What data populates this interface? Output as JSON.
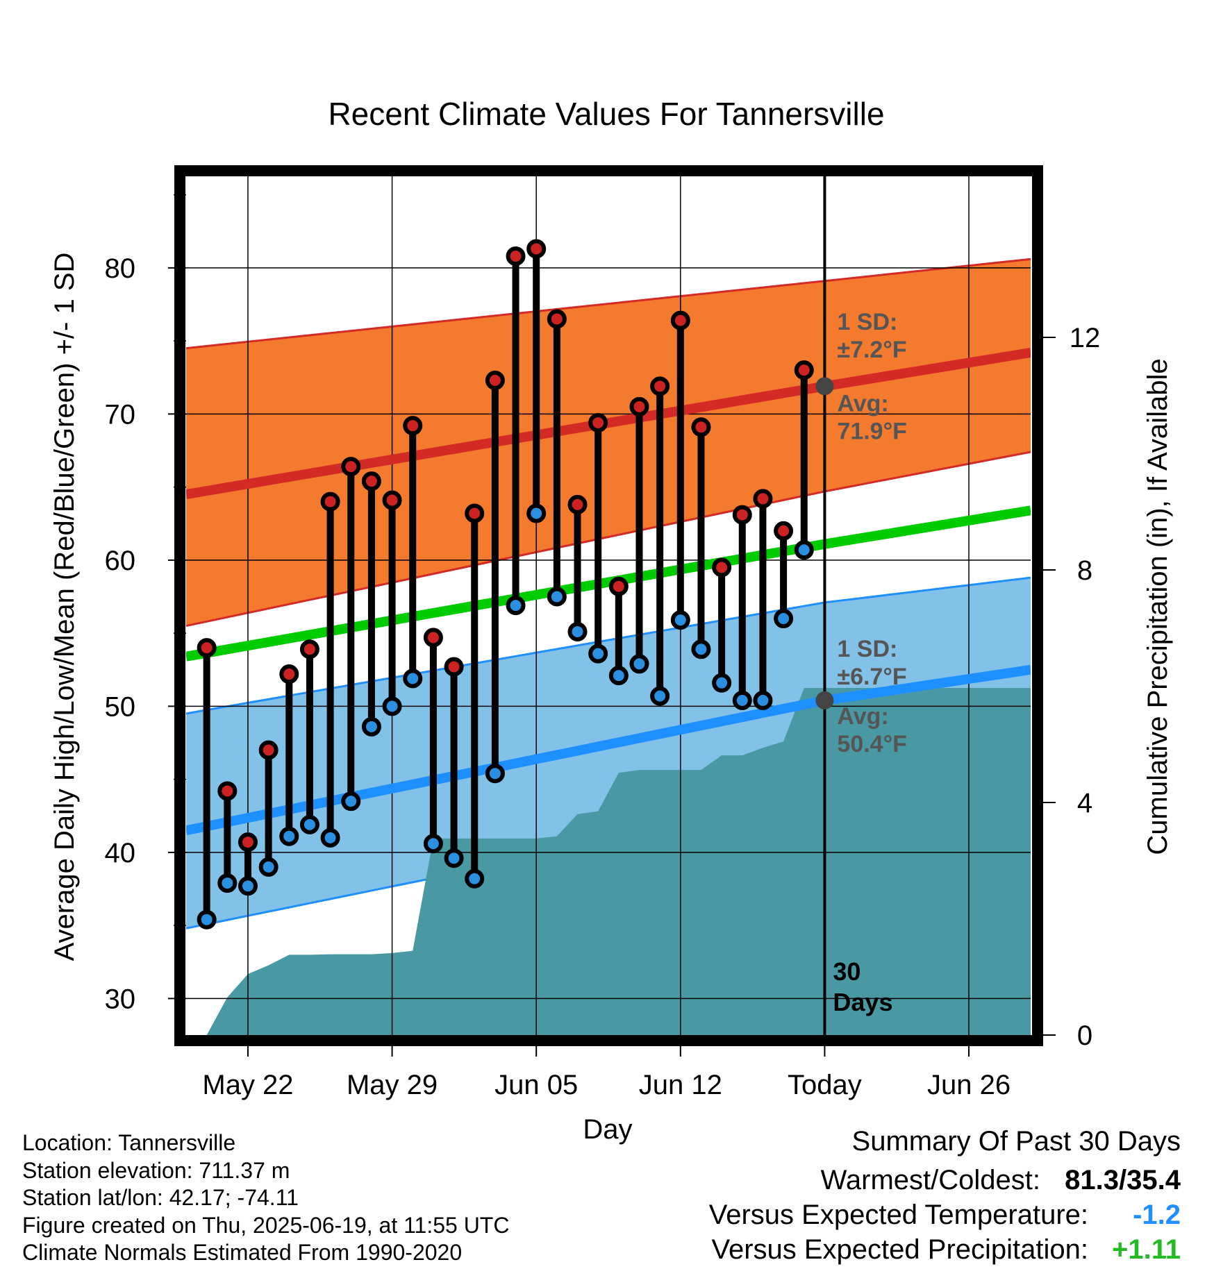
{
  "chart_data": {
    "type": "line",
    "title": "Recent Climate Values For Tannersville",
    "xlabel": "Day",
    "ylabel": "Average Daily High/Low/Mean (Red/Blue/Green) +/- 1 SD",
    "y2label": "Cumulative Precipitation (in), If Available",
    "ylim": [
      27.5,
      86.5
    ],
    "y2lim": [
      0,
      14.83
    ],
    "yticks": [
      30,
      40,
      50,
      60,
      70,
      80
    ],
    "y2ticks": [
      0,
      4,
      8,
      12
    ],
    "xlim": [
      "2025-05-19",
      "2025-06-29"
    ],
    "xticks": [
      {
        "date": "2025-05-22",
        "label": "May 22"
      },
      {
        "date": "2025-05-29",
        "label": "May 29"
      },
      {
        "date": "2025-06-05",
        "label": "Jun 05"
      },
      {
        "date": "2025-06-12",
        "label": "Jun 12"
      },
      {
        "date": "2025-06-19",
        "label": "Today"
      },
      {
        "date": "2025-06-26",
        "label": "Jun 26"
      }
    ],
    "grid": true,
    "today": "2025-06-19",
    "today_label": [
      "30",
      "Days"
    ],
    "normals": {
      "dates": [
        "2025-05-19",
        "2025-06-19",
        "2025-06-29"
      ],
      "high_avg": [
        64.5,
        71.9,
        74.2
      ],
      "high_upper": [
        74.5,
        79.1,
        80.6
      ],
      "high_lower": [
        55.5,
        64.7,
        67.4
      ],
      "low_avg": [
        41.5,
        50.4,
        52.5
      ],
      "low_upper": [
        49.5,
        57.1,
        58.8
      ],
      "low_lower": [
        34.8,
        43.7,
        46.8
      ],
      "mean_avg": [
        53.4,
        61.1,
        63.4
      ]
    },
    "annotations": {
      "high_sd": [
        "1 SD:",
        "±7.2°F"
      ],
      "high_avg": [
        "Avg:",
        "71.9°F"
      ],
      "low_sd": [
        "1 SD:",
        "±6.7°F"
      ],
      "low_avg": [
        "Avg:",
        "50.4°F"
      ]
    },
    "series": [
      {
        "name": "High",
        "dates": [
          "2025-05-20",
          "2025-05-21",
          "2025-05-22",
          "2025-05-23",
          "2025-05-24",
          "2025-05-25",
          "2025-05-26",
          "2025-05-27",
          "2025-05-28",
          "2025-05-29",
          "2025-05-30",
          "2025-05-31",
          "2025-06-01",
          "2025-06-02",
          "2025-06-03",
          "2025-06-04",
          "2025-06-05",
          "2025-06-06",
          "2025-06-07",
          "2025-06-08",
          "2025-06-09",
          "2025-06-10",
          "2025-06-11",
          "2025-06-12",
          "2025-06-13",
          "2025-06-14",
          "2025-06-15",
          "2025-06-16",
          "2025-06-17",
          "2025-06-18"
        ],
        "values": [
          54.0,
          44.2,
          40.7,
          47.0,
          52.2,
          53.9,
          64.0,
          66.4,
          65.4,
          64.1,
          69.2,
          54.7,
          52.7,
          63.2,
          72.3,
          80.8,
          81.3,
          76.5,
          63.8,
          69.4,
          58.2,
          70.5,
          71.9,
          76.4,
          69.1,
          59.5,
          63.1,
          64.2,
          62.0,
          73.0
        ]
      },
      {
        "name": "Low",
        "dates": [
          "2025-05-20",
          "2025-05-21",
          "2025-05-22",
          "2025-05-23",
          "2025-05-24",
          "2025-05-25",
          "2025-05-26",
          "2025-05-27",
          "2025-05-28",
          "2025-05-29",
          "2025-05-30",
          "2025-05-31",
          "2025-06-01",
          "2025-06-02",
          "2025-06-03",
          "2025-06-04",
          "2025-06-05",
          "2025-06-06",
          "2025-06-07",
          "2025-06-08",
          "2025-06-09",
          "2025-06-10",
          "2025-06-11",
          "2025-06-12",
          "2025-06-13",
          "2025-06-14",
          "2025-06-15",
          "2025-06-16",
          "2025-06-17",
          "2025-06-18"
        ],
        "values": [
          35.4,
          37.9,
          37.7,
          39.0,
          41.1,
          41.9,
          41.0,
          43.5,
          48.6,
          50.0,
          51.9,
          40.6,
          39.6,
          38.2,
          45.4,
          56.9,
          63.2,
          57.5,
          55.1,
          53.6,
          52.1,
          52.9,
          50.7,
          55.9,
          53.9,
          51.6,
          50.4,
          50.4,
          56.0,
          60.7
        ]
      },
      {
        "name": "Cumulative Precipitation",
        "dates": [
          "2025-05-20",
          "2025-05-21",
          "2025-05-22",
          "2025-05-23",
          "2025-05-24",
          "2025-05-25",
          "2025-05-26",
          "2025-05-27",
          "2025-05-28",
          "2025-05-29",
          "2025-05-30",
          "2025-05-31",
          "2025-06-01",
          "2025-06-02",
          "2025-06-03",
          "2025-06-04",
          "2025-06-05",
          "2025-06-06",
          "2025-06-07",
          "2025-06-08",
          "2025-06-09",
          "2025-06-10",
          "2025-06-11",
          "2025-06-12",
          "2025-06-13",
          "2025-06-14",
          "2025-06-15",
          "2025-06-16",
          "2025-06-17",
          "2025-06-18",
          "2025-06-19",
          "2025-06-29"
        ],
        "values": [
          0.0,
          0.65,
          1.05,
          1.2,
          1.38,
          1.38,
          1.39,
          1.39,
          1.39,
          1.41,
          1.45,
          3.38,
          3.38,
          3.38,
          3.38,
          3.38,
          3.38,
          3.42,
          3.8,
          3.85,
          4.51,
          4.56,
          4.56,
          4.56,
          4.56,
          4.81,
          4.81,
          4.94,
          5.05,
          5.97,
          5.97,
          5.97
        ]
      }
    ]
  },
  "info": {
    "location": "Location: Tannersville",
    "elevation": "Station elevation: 711.37 m",
    "latlon": "Station lat/lon: 42.17; -74.11",
    "created": "Figure created on Thu, 2025-06-19, at 11:55 UTC",
    "normals": "Climate Normals Estimated From 1990-2020"
  },
  "summary": {
    "title": "Summary Of Past 30 Days",
    "warm_label": "Warmest/Coldest:",
    "warm_value": "81.3/35.4",
    "temp_label": "Versus Expected Temperature:",
    "temp_value": "-1.2",
    "precip_label": "Versus Expected Precipitation:",
    "precip_value": "+1.11"
  },
  "colors": {
    "high_band": "#f47a2e",
    "high_line": "#d42a26",
    "low_band": "#82c2e8",
    "low_line": "#1e8fff",
    "mean_line": "#00cc00",
    "precip": "#4899a4",
    "annotation": "#555555",
    "high_marker": "#cc2222",
    "low_marker": "#2a8fe0",
    "temp_value": "#1e8fff",
    "precip_value": "#22bb22"
  }
}
